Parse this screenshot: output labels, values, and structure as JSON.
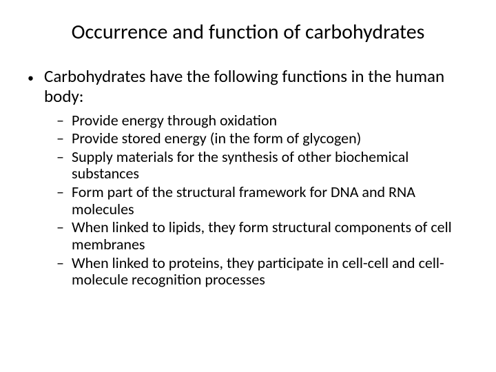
{
  "slide": {
    "title": "Occurrence and function of carbohydrates",
    "bullet_level1": "•",
    "bullet_level2": "–",
    "intro": "Carbohydrates have the following functions in the human body:",
    "items": [
      "Provide energy through oxidation",
      "Provide stored energy (in the form of glycogen)",
      "Supply materials for the synthesis of other biochemical substances",
      "Form part of the structural framework for DNA and RNA molecules",
      "When linked to lipids, they form structural components of cell membranes",
      "When linked to proteins, they participate in cell-cell and cell-molecule recognition processes"
    ]
  },
  "style": {
    "background_color": "#ffffff",
    "text_color": "#000000",
    "title_fontsize": 30,
    "level1_fontsize": 25,
    "level2_fontsize": 22,
    "font_family": "Calibri"
  }
}
